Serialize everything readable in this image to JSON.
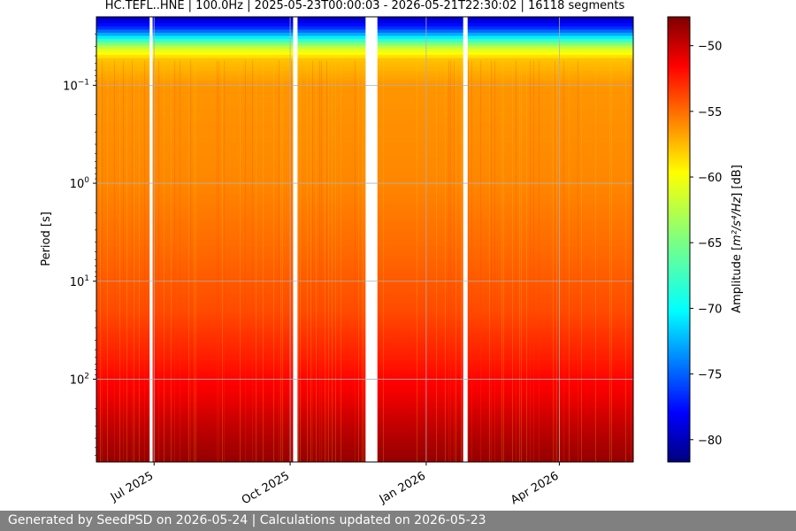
{
  "chart_data": {
    "type": "heatmap",
    "title": "HC.TEFL..HNE | 100.0Hz | 2025-05-23T00:00:03 - 2026-05-21T22:30:02 | 16118 segments",
    "ylabel": "Period [s]",
    "y_scale": "log",
    "y_inverted": true,
    "ylim": [
      0.02,
      700
    ],
    "y_ticks": [
      {
        "value": 0.1,
        "base": "10",
        "exp": "−1"
      },
      {
        "value": 1,
        "base": "10",
        "exp": "0"
      },
      {
        "value": 10,
        "base": "10",
        "exp": "1"
      },
      {
        "value": 100,
        "base": "10",
        "exp": "2"
      }
    ],
    "xlim": [
      "2025-05-23",
      "2026-05-21"
    ],
    "x_ticks": [
      {
        "date": "2025-07-01",
        "label": "Jul 2025"
      },
      {
        "date": "2025-10-01",
        "label": "Oct 2025"
      },
      {
        "date": "2026-01-01",
        "label": "Jan 2026"
      },
      {
        "date": "2026-04-01",
        "label": "Apr 2026"
      }
    ],
    "grid": true,
    "colormap": "jet",
    "colorbar": {
      "label_prefix": "Amplitude [",
      "label_units": "m²/s⁴/Hz",
      "label_suffix": "] [dB]",
      "range": [
        -81.7,
        -47.8
      ],
      "ticks": [
        -50,
        -55,
        -60,
        -65,
        -70,
        -75,
        -80
      ]
    },
    "data_gaps": [
      [
        "2025-06-28",
        "2025-06-30"
      ],
      [
        "2025-10-03",
        "2025-10-06"
      ],
      [
        "2025-11-21",
        "2025-11-29"
      ],
      [
        "2026-01-26",
        "2026-01-29"
      ]
    ],
    "amplitude_profile_db": [
      {
        "period": 0.02,
        "db": -80
      },
      {
        "period": 0.026,
        "db": -76
      },
      {
        "period": 0.03,
        "db": -72
      },
      {
        "period": 0.035,
        "db": -67
      },
      {
        "period": 0.042,
        "db": -62
      },
      {
        "period": 0.055,
        "db": -58.5
      },
      {
        "period": 0.1,
        "db": -57
      },
      {
        "period": 1,
        "db": -56.5
      },
      {
        "period": 5,
        "db": -55.5
      },
      {
        "period": 20,
        "db": -54.5
      },
      {
        "period": 60,
        "db": -53
      },
      {
        "period": 150,
        "db": -51.5
      },
      {
        "period": 300,
        "db": -50
      },
      {
        "period": 700,
        "db": -48.5
      }
    ]
  },
  "footer_text": "Generated by SeedPSD on 2026-05-24 | Calculations updated on 2026-05-23"
}
